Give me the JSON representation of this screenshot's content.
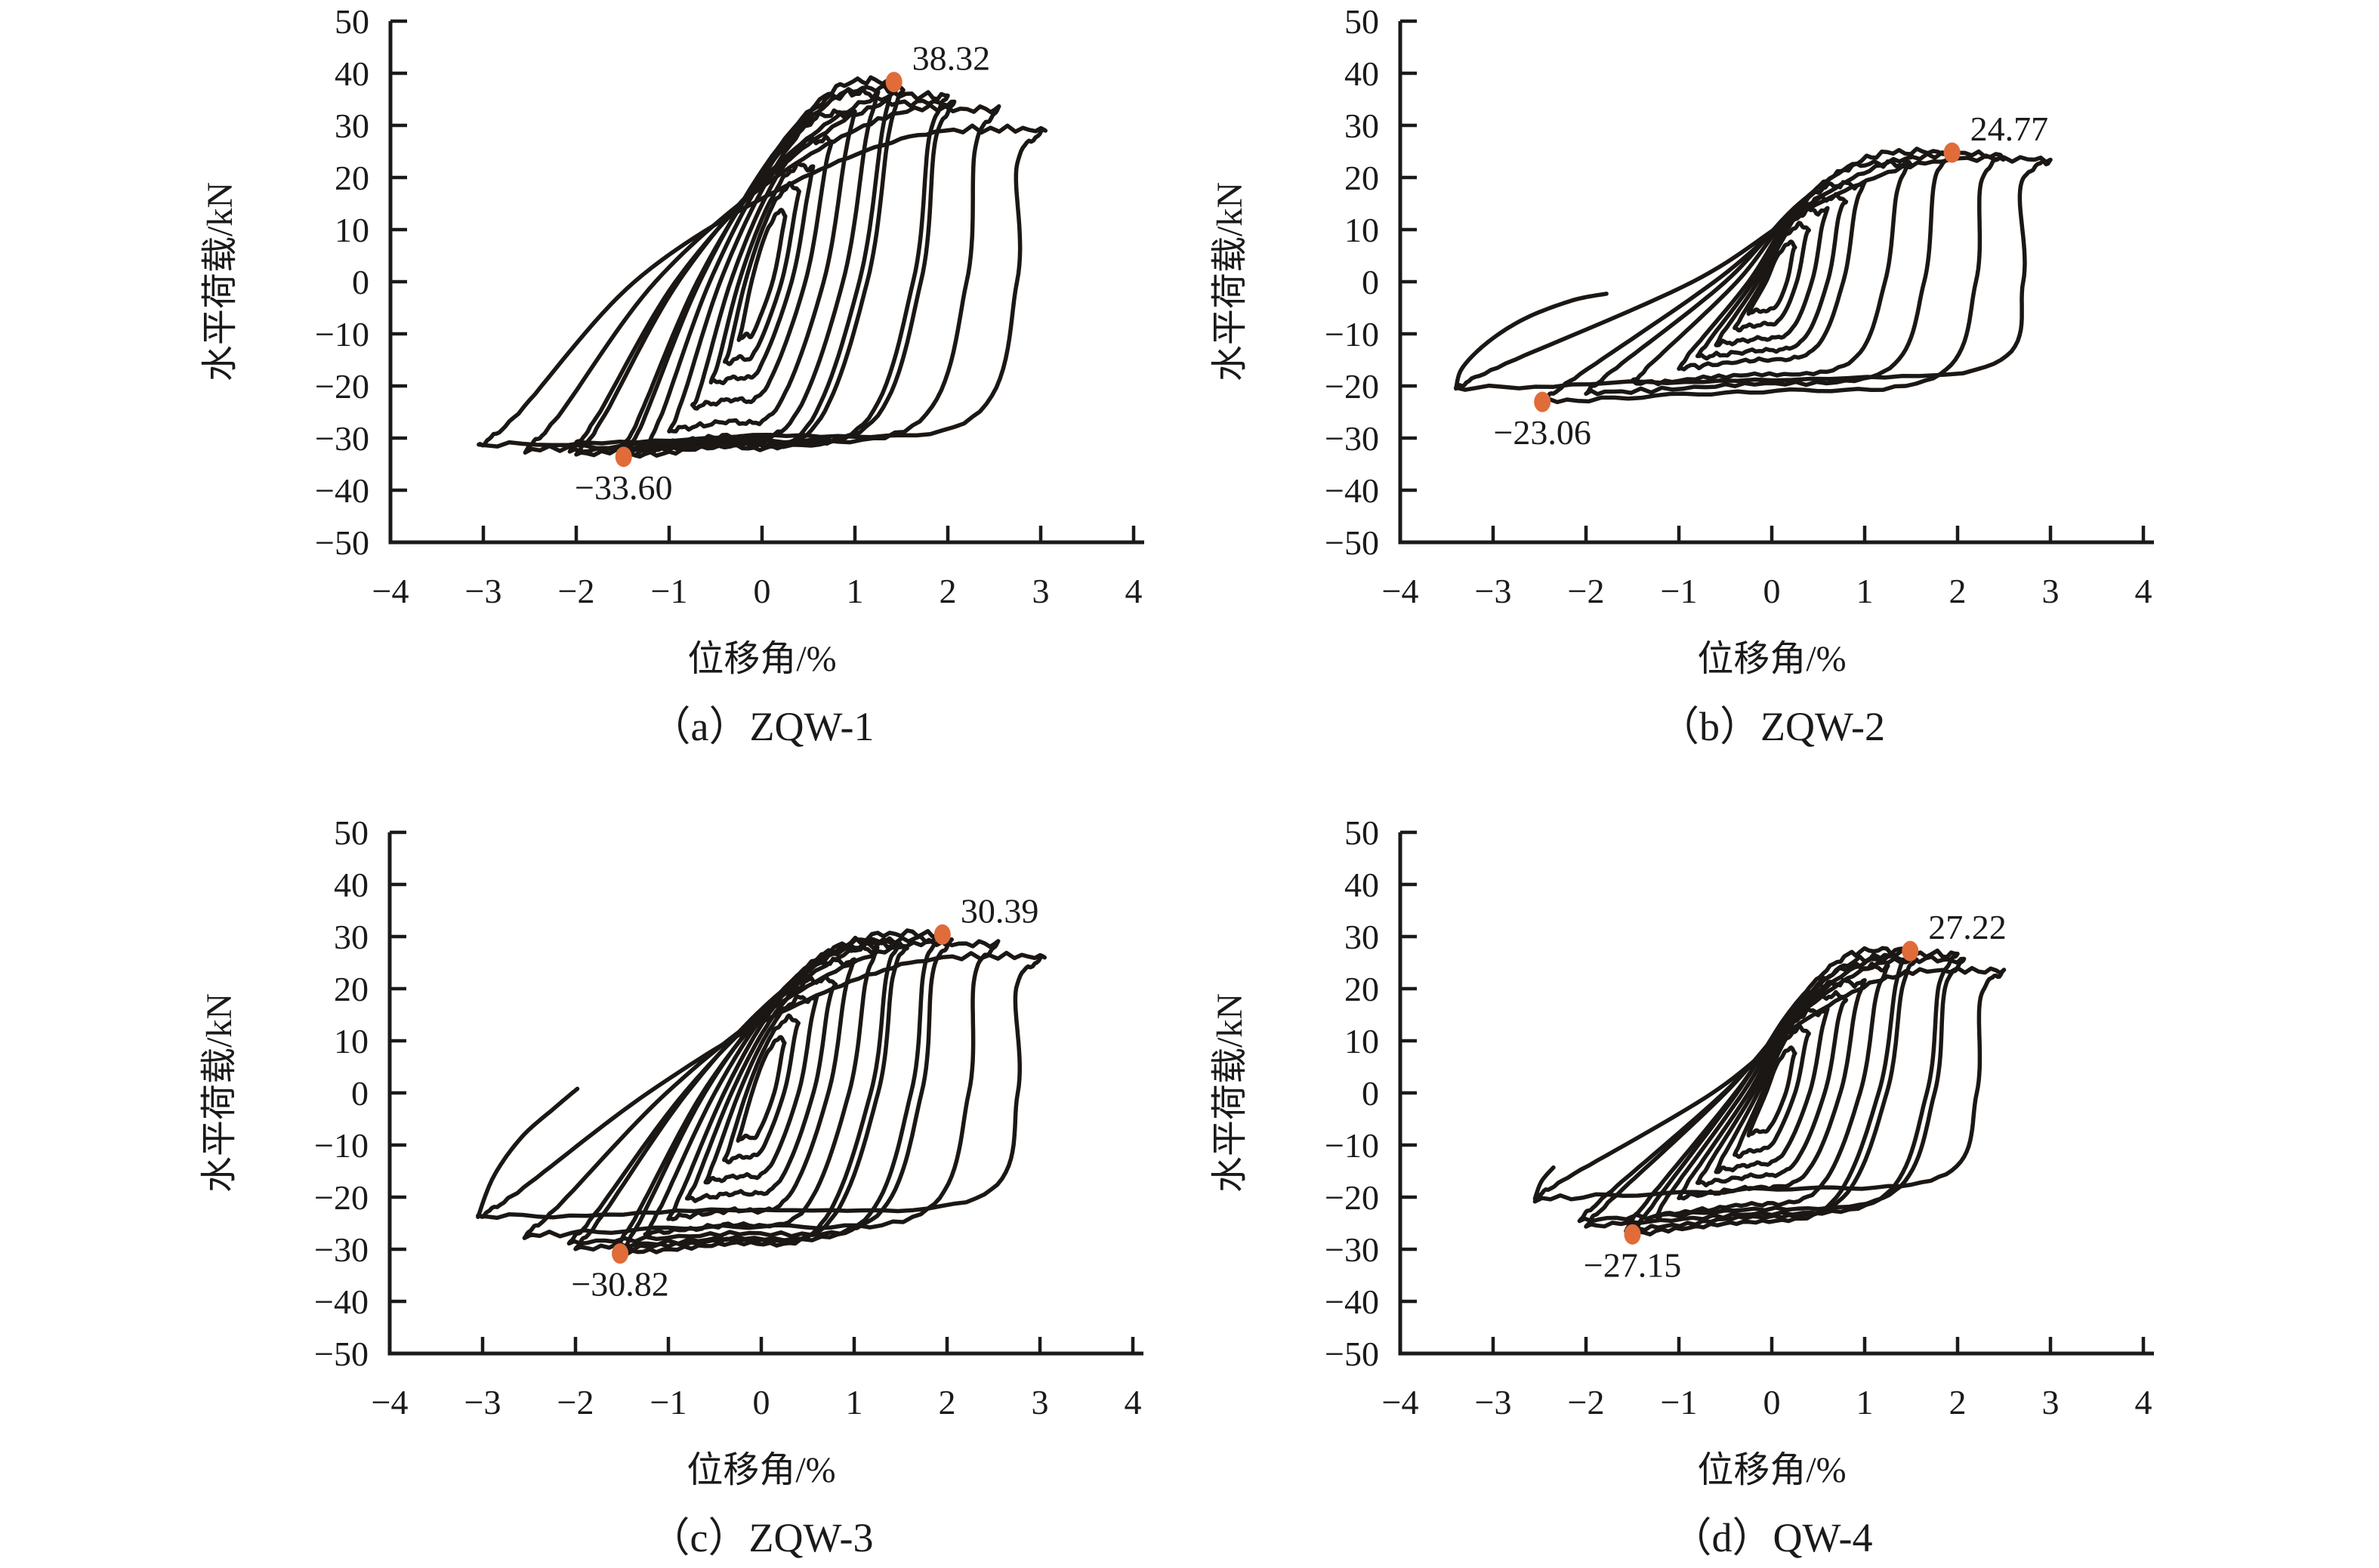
{
  "figure": {
    "background": "#ffffff",
    "curve_color": "#1b1714",
    "axis_color": "#1a1a1a",
    "marker_color": "#e06c3a",
    "text_color": "#1a1a1a"
  },
  "chart_data": [
    {
      "id": "a",
      "type": "line",
      "subtype": "cyclic-hysteresis-loops",
      "title": "（a）ZQW-1",
      "xlabel": "位移角/%",
      "ylabel": "水平荷载/kN",
      "xlim": [
        -4,
        4
      ],
      "ylim": [
        -50,
        50
      ],
      "xticks": [
        -4,
        -3,
        -2,
        -1,
        0,
        1,
        2,
        3,
        4
      ],
      "yticks": [
        50,
        40,
        30,
        20,
        10,
        0,
        -10,
        -20,
        -30,
        -40,
        -50
      ],
      "grid": false,
      "legend": null,
      "annotations": [
        {
          "label": "38.32",
          "x": 1.42,
          "y": 38.32,
          "placement": "top"
        },
        {
          "label": "−33.60",
          "x": -1.49,
          "y": -33.6,
          "placement": "bottom"
        }
      ],
      "peak_load_pos_kN": 38.32,
      "peak_load_neg_kN": -33.6,
      "cycles": [
        {
          "ap": 0.25,
          "pp": 13.0,
          "an": -0.25,
          "pn": -11.0
        },
        {
          "ap": 0.4,
          "pp": 18.0,
          "an": -0.4,
          "pn": -15.5
        },
        {
          "ap": 0.55,
          "pp": 22.0,
          "an": -0.55,
          "pn": -19.5
        },
        {
          "ap": 0.75,
          "pp": 27.0,
          "an": -0.75,
          "pn": -24.0
        },
        {
          "ap": 1.0,
          "pp": 32.0,
          "an": -1.0,
          "pn": -28.5
        },
        {
          "ap": 1.25,
          "pp": 36.0,
          "an": -1.25,
          "pn": -31.5
        },
        {
          "ap": 1.45,
          "pp": 38.3,
          "an": -1.49,
          "pn": -33.6
        },
        {
          "ap": 1.52,
          "pp": 36.8,
          "an": -1.55,
          "pn": -33.1
        },
        {
          "ap": 2.0,
          "pp": 35.5,
          "an": -2.0,
          "pn": -33.0
        },
        {
          "ap": 2.07,
          "pp": 34.2,
          "an": -2.07,
          "pn": -32.5
        },
        {
          "ap": 2.55,
          "pp": 33.0,
          "an": -2.55,
          "pn": -32.2
        },
        {
          "ap": 3.05,
          "pp": 29.0,
          "an": -3.05,
          "pn": -31.5
        }
      ],
      "loop_shape": {
        "zr": 0.45,
        "ku": 95,
        "fl": 0.86,
        "jitter": 0.75
      },
      "tail": []
    },
    {
      "id": "b",
      "type": "line",
      "subtype": "cyclic-hysteresis-loops",
      "title": "（b）ZQW-2",
      "xlabel": "位移角/%",
      "ylabel": "水平荷载/kN",
      "xlim": [
        -4,
        4
      ],
      "ylim": [
        -50,
        50
      ],
      "xticks": [
        -4,
        -3,
        -2,
        -1,
        0,
        1,
        2,
        3,
        4
      ],
      "yticks": [
        50,
        40,
        30,
        20,
        10,
        0,
        -10,
        -20,
        -30,
        -40,
        -50
      ],
      "grid": false,
      "legend": null,
      "annotations": [
        {
          "label": "24.77",
          "x": 1.94,
          "y": 24.77,
          "placement": "top"
        },
        {
          "label": "−23.06",
          "x": -2.47,
          "y": -23.06,
          "placement": "bottom"
        }
      ],
      "peak_load_pos_kN": 24.77,
      "peak_load_neg_kN": -23.06,
      "cycles": [
        {
          "ap": 0.25,
          "pp": 7.0,
          "an": -0.25,
          "pn": -6.0
        },
        {
          "ap": 0.4,
          "pp": 10.5,
          "an": -0.4,
          "pn": -9.0
        },
        {
          "ap": 0.6,
          "pp": 13.5,
          "an": -0.6,
          "pn": -12.0
        },
        {
          "ap": 0.8,
          "pp": 16.0,
          "an": -0.8,
          "pn": -14.5
        },
        {
          "ap": 1.0,
          "pp": 18.5,
          "an": -1.0,
          "pn": -16.5
        },
        {
          "ap": 1.5,
          "pp": 22.5,
          "an": -1.5,
          "pn": -19.5
        },
        {
          "ap": 1.95,
          "pp": 24.77,
          "an": -2.0,
          "pn": -21.5
        },
        {
          "ap": 2.5,
          "pp": 24.2,
          "an": -2.47,
          "pn": -23.06
        },
        {
          "ap": 3.0,
          "pp": 23.5,
          "an": -3.4,
          "pn": -20.5
        }
      ],
      "loop_shape": {
        "zr": 0.25,
        "ku": 80,
        "fl": 0.8,
        "jitter": 0.7
      },
      "tail": [
        [
          -3.4,
          -20.5
        ],
        [
          -3.33,
          -16.5
        ],
        [
          -3.05,
          -11.5
        ],
        [
          -2.65,
          -7.0
        ],
        [
          -2.15,
          -3.6
        ],
        [
          -1.78,
          -2.3
        ]
      ]
    },
    {
      "id": "c",
      "type": "line",
      "subtype": "cyclic-hysteresis-loops",
      "title": "（c）ZQW-3",
      "xlabel": "位移角/%",
      "ylabel": "水平荷载/kN",
      "xlim": [
        -4,
        4
      ],
      "ylim": [
        -50,
        50
      ],
      "xticks": [
        -4,
        -3,
        -2,
        -1,
        0,
        1,
        2,
        3,
        4
      ],
      "yticks": [
        50,
        40,
        30,
        20,
        10,
        0,
        -10,
        -20,
        -30,
        -40,
        -50
      ],
      "grid": false,
      "legend": null,
      "annotations": [
        {
          "label": "30.39",
          "x": 1.95,
          "y": 30.39,
          "placement": "top"
        },
        {
          "label": "−30.82",
          "x": -1.52,
          "y": -30.82,
          "placement": "bottom"
        }
      ],
      "peak_load_pos_kN": 30.39,
      "peak_load_neg_kN": -30.82,
      "cycles": [
        {
          "ap": 0.25,
          "pp": 10.0,
          "an": -0.25,
          "pn": -9.0
        },
        {
          "ap": 0.4,
          "pp": 14.0,
          "an": -0.4,
          "pn": -13.0
        },
        {
          "ap": 0.6,
          "pp": 18.0,
          "an": -0.6,
          "pn": -17.0
        },
        {
          "ap": 0.8,
          "pp": 21.5,
          "an": -0.8,
          "pn": -20.5
        },
        {
          "ap": 1.0,
          "pp": 25.0,
          "an": -1.0,
          "pn": -24.0
        },
        {
          "ap": 1.25,
          "pp": 27.5,
          "an": -1.25,
          "pn": -27.0
        },
        {
          "ap": 1.5,
          "pp": 29.0,
          "an": -1.52,
          "pn": -30.82
        },
        {
          "ap": 1.57,
          "pp": 28.2,
          "an": -1.58,
          "pn": -30.0
        },
        {
          "ap": 1.95,
          "pp": 30.39,
          "an": -2.0,
          "pn": -29.8
        },
        {
          "ap": 2.05,
          "pp": 29.2,
          "an": -2.07,
          "pn": -28.8
        },
        {
          "ap": 2.55,
          "pp": 28.5,
          "an": -2.55,
          "pn": -27.3
        },
        {
          "ap": 3.05,
          "pp": 26.0,
          "an": -3.05,
          "pn": -23.8
        }
      ],
      "loop_shape": {
        "zr": 0.4,
        "ku": 90,
        "fl": 0.85,
        "jitter": 0.7
      },
      "tail": [
        [
          -3.05,
          -23.8
        ],
        [
          -2.88,
          -16.0
        ],
        [
          -2.58,
          -8.5
        ],
        [
          -2.22,
          -2.8
        ],
        [
          -1.98,
          0.8
        ]
      ]
    },
    {
      "id": "d",
      "type": "line",
      "subtype": "cyclic-hysteresis-loops",
      "title": "（d）QW-4",
      "xlabel": "位移角/%",
      "ylabel": "水平荷载/kN",
      "xlim": [
        -4,
        4
      ],
      "ylim": [
        -50,
        50
      ],
      "xticks": [
        -4,
        -3,
        -2,
        -1,
        0,
        1,
        2,
        3,
        4
      ],
      "yticks": [
        50,
        40,
        30,
        20,
        10,
        0,
        -10,
        -20,
        -30,
        -40,
        -50
      ],
      "grid": false,
      "legend": null,
      "annotations": [
        {
          "label": "27.22",
          "x": 1.49,
          "y": 27.22,
          "placement": "top"
        },
        {
          "label": "−27.15",
          "x": -1.5,
          "y": -27.15,
          "placement": "bottom"
        }
      ],
      "peak_load_pos_kN": 27.22,
      "peak_load_neg_kN": -27.15,
      "cycles": [
        {
          "ap": 0.25,
          "pp": 8.0,
          "an": -0.25,
          "pn": -8.0
        },
        {
          "ap": 0.4,
          "pp": 12.0,
          "an": -0.4,
          "pn": -12.0
        },
        {
          "ap": 0.6,
          "pp": 15.5,
          "an": -0.6,
          "pn": -15.0
        },
        {
          "ap": 0.8,
          "pp": 18.5,
          "an": -0.8,
          "pn": -17.5
        },
        {
          "ap": 1.0,
          "pp": 21.0,
          "an": -1.0,
          "pn": -20.0
        },
        {
          "ap": 1.25,
          "pp": 24.0,
          "an": -1.25,
          "pn": -23.5
        },
        {
          "ap": 1.49,
          "pp": 27.22,
          "an": -1.5,
          "pn": -27.15
        },
        {
          "ap": 1.56,
          "pp": 25.8,
          "an": -1.57,
          "pn": -26.2
        },
        {
          "ap": 2.0,
          "pp": 26.5,
          "an": -2.0,
          "pn": -25.5
        },
        {
          "ap": 2.07,
          "pp": 25.4,
          "an": -2.07,
          "pn": -24.5
        },
        {
          "ap": 2.5,
          "pp": 23.5,
          "an": -2.55,
          "pn": -20.3
        }
      ],
      "loop_shape": {
        "zr": 0.25,
        "ku": 80,
        "fl": 0.8,
        "jitter": 0.7
      },
      "tail": [
        [
          -2.55,
          -20.3
        ],
        [
          -2.48,
          -17.0
        ],
        [
          -2.35,
          -14.3
        ]
      ]
    }
  ]
}
